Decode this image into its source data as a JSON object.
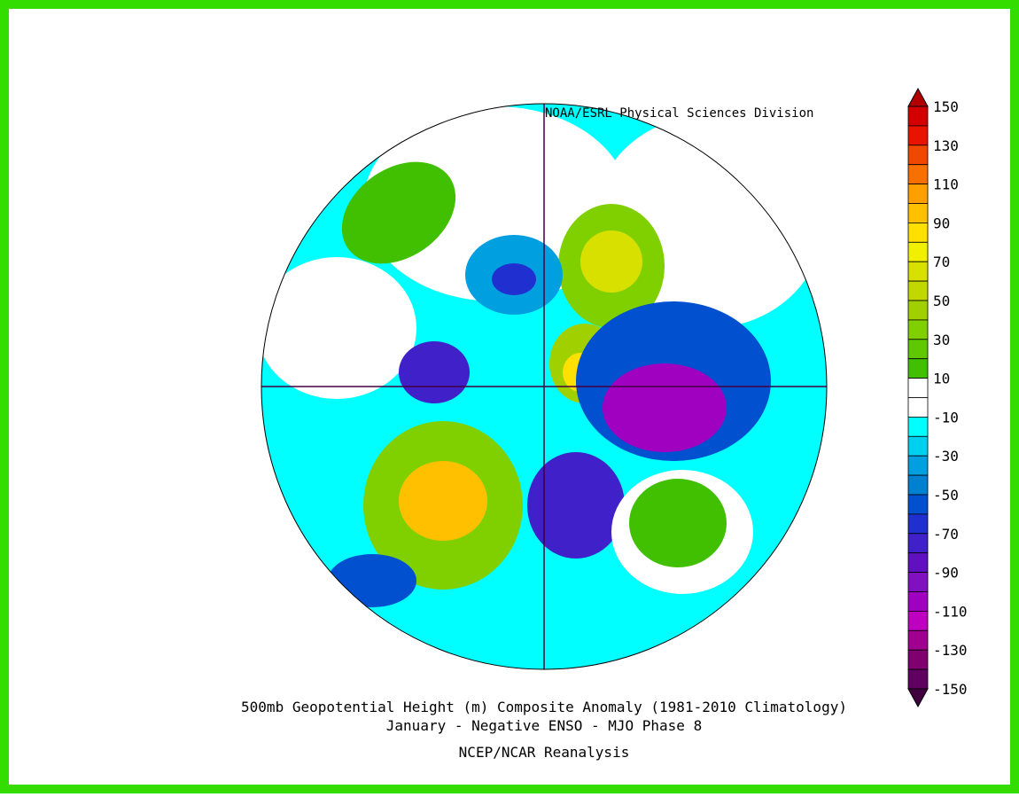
{
  "source": "NOAA/ESRL Physical Sciences Division",
  "title": "500mb Geopotential Height (m) Composite Anomaly (1981-2010 Climatology)",
  "subtitle": "January - Negative ENSO - MJO Phase 8",
  "footer": "NCEP/NCAR Reanalysis",
  "colorbar": {
    "labels": [
      150,
      130,
      110,
      90,
      70,
      50,
      30,
      10,
      -10,
      -30,
      -50,
      -70,
      -90,
      -110,
      -130,
      -150
    ],
    "colors": [
      "#d40000",
      "#e81400",
      "#f04800",
      "#f87000",
      "#ffa000",
      "#ffc000",
      "#ffe000",
      "#f0f000",
      "#d8e000",
      "#c0d800",
      "#a0d000",
      "#80d000",
      "#60c800",
      "#40c000",
      "#ffffff",
      "#ffffff",
      "#00ffff",
      "#00d0f0",
      "#00a0e0",
      "#0080d0",
      "#0050d0",
      "#2030d0",
      "#4020c8",
      "#6010c0",
      "#8010c0",
      "#a000c0",
      "#c000c0",
      "#a00090",
      "#800070",
      "#600060"
    ],
    "over": "#b00000",
    "under": "#400040"
  }
}
